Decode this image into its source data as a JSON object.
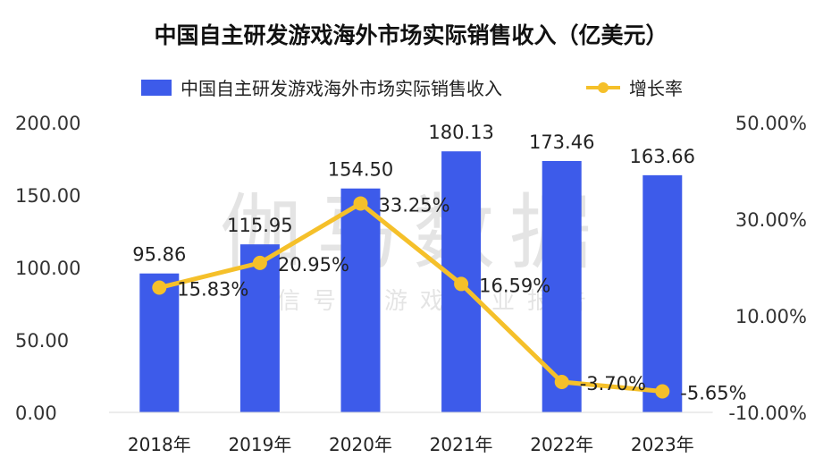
{
  "chart_data": {
    "type": "bar+line",
    "title": "中国自主研发游戏海外市场实际销售收入（亿美元）",
    "categories": [
      "2018年",
      "2019年",
      "2020年",
      "2021年",
      "2022年",
      "2023年"
    ],
    "series": [
      {
        "name": "中国自主研发游戏海外市场实际销售收入",
        "type": "bar",
        "axis": "left",
        "values": [
          95.86,
          115.95,
          154.5,
          180.13,
          173.46,
          163.66
        ],
        "labels": [
          "95.86",
          "115.95",
          "154.50",
          "180.13",
          "173.46",
          "163.66"
        ]
      },
      {
        "name": "增长率",
        "type": "line",
        "axis": "right",
        "values": [
          15.83,
          20.95,
          33.25,
          16.59,
          -3.7,
          -5.65
        ],
        "labels": [
          "15.83%",
          "20.95%",
          "33.25%",
          "16.59%",
          "-3.70%",
          "-5.65%"
        ]
      }
    ],
    "y_left": {
      "ylim": [
        0,
        200
      ],
      "ticks": [
        "0.00",
        "50.00",
        "100.00",
        "150.00",
        "200.00"
      ]
    },
    "y_right": {
      "ylim": [
        -10,
        50
      ],
      "ticks": [
        "-10.00%",
        "10.00%",
        "30.00%",
        "50.00%"
      ]
    },
    "grid": false,
    "legend_position": "top-center",
    "colors": {
      "bar": "#3d5bea",
      "line": "#f5c02a",
      "text": "#111111",
      "axis_text": "#333333"
    },
    "watermark": {
      "main": "伽马数据",
      "sub": "微信号：游戏产业报告"
    }
  }
}
